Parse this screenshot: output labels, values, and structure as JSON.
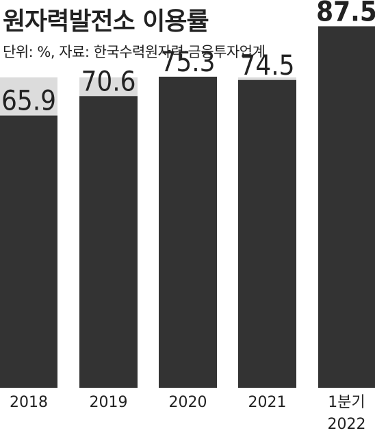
{
  "title": "원자력발전소 이용률",
  "subtitle": "단위: %, 자료: 한국수력원자력·금융투자업계",
  "chart_data": {
    "type": "bar",
    "categories": [
      [
        "2018"
      ],
      [
        "2019"
      ],
      [
        "2020"
      ],
      [
        "2021"
      ],
      [
        "1분기",
        "2022"
      ]
    ],
    "values": [
      65.9,
      70.6,
      75.3,
      74.5,
      87.5
    ],
    "data_labels": [
      "65.9",
      "70.6",
      "75.3",
      "74.5",
      "87.5"
    ],
    "ylim": [
      0,
      100
    ],
    "grid": false,
    "highlight_index": 4,
    "colors": {
      "bar": "#333333",
      "background_column": "#dcdcdc",
      "text": "#222222"
    }
  }
}
